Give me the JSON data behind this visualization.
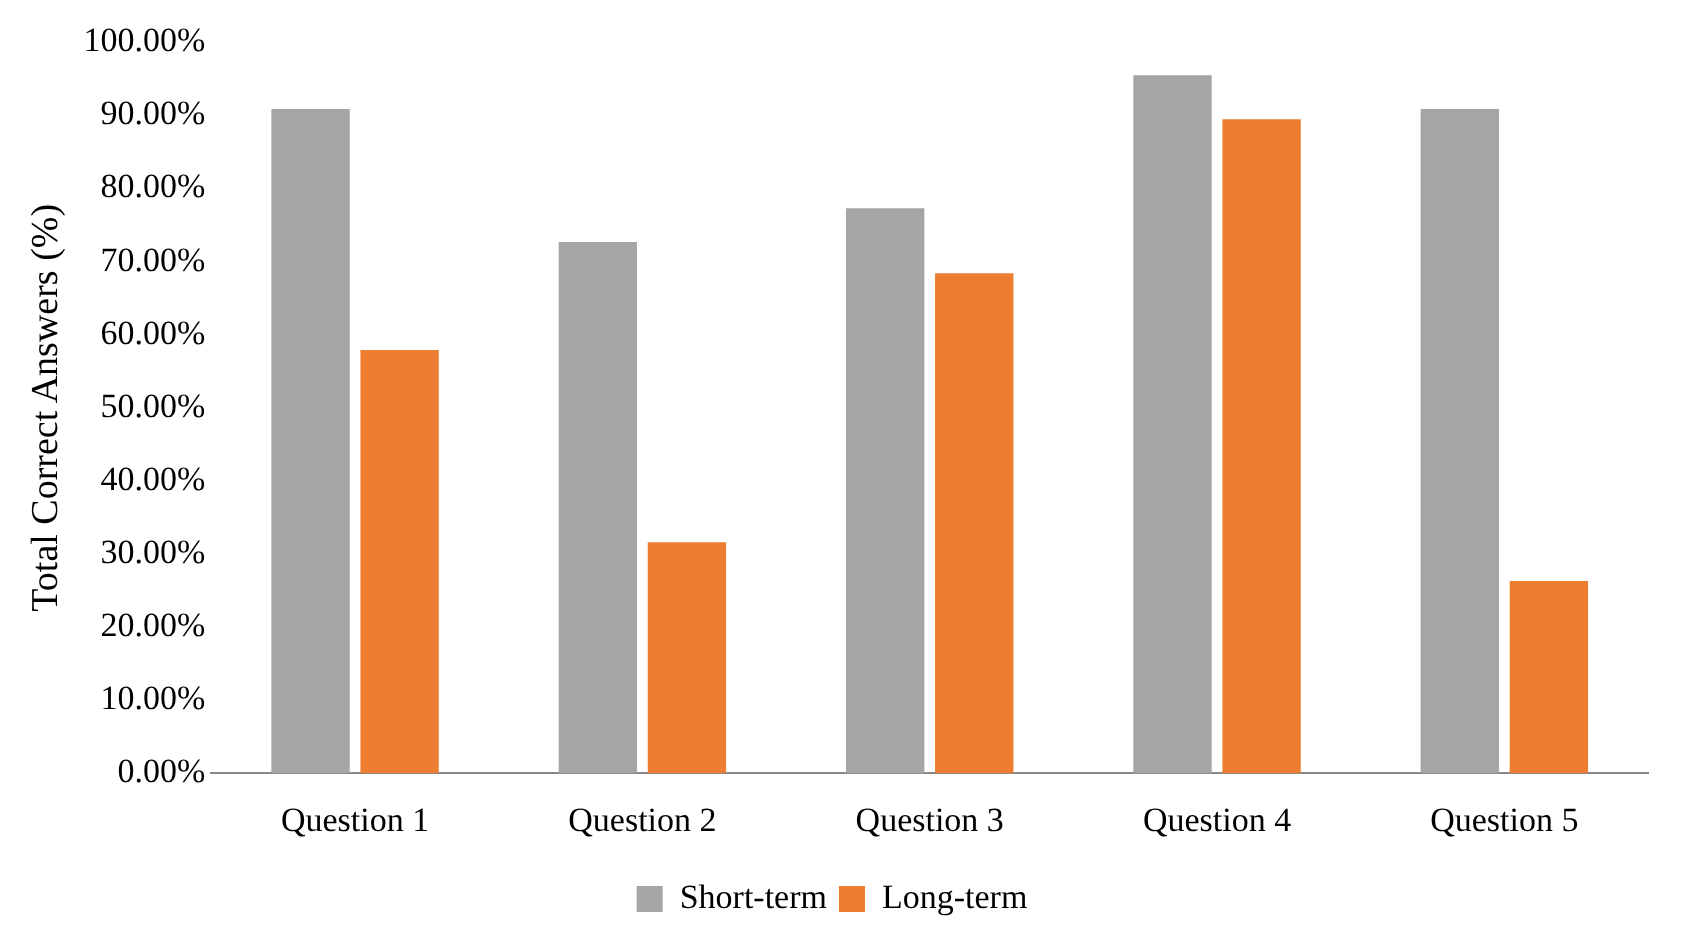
{
  "chart_data": {
    "type": "bar",
    "ylabel": "Total Correct Answers (%)",
    "categories": [
      "Question 1",
      "Question 2",
      "Question 3",
      "Question 4",
      "Question 5"
    ],
    "series": [
      {
        "name": "Short-term",
        "color": "#a5a5a5",
        "values": [
          90.9,
          72.7,
          77.3,
          95.5,
          90.9
        ]
      },
      {
        "name": "Long-term",
        "color": "#ed7d31",
        "values": [
          57.9,
          31.6,
          68.4,
          89.5,
          26.3
        ]
      }
    ],
    "ylim": [
      0,
      100
    ],
    "yticks": [
      {
        "value": 0,
        "label": "0.00%"
      },
      {
        "value": 10,
        "label": "10.00%"
      },
      {
        "value": 20,
        "label": "20.00%"
      },
      {
        "value": 30,
        "label": "30.00%"
      },
      {
        "value": 40,
        "label": "40.00%"
      },
      {
        "value": 50,
        "label": "50.00%"
      },
      {
        "value": 60,
        "label": "60.00%"
      },
      {
        "value": 70,
        "label": "70.00%"
      },
      {
        "value": 80,
        "label": "80.00%"
      },
      {
        "value": 90,
        "label": "90.00%"
      },
      {
        "value": 100,
        "label": "100.00%"
      }
    ],
    "grid": false,
    "legend": "bottom"
  }
}
